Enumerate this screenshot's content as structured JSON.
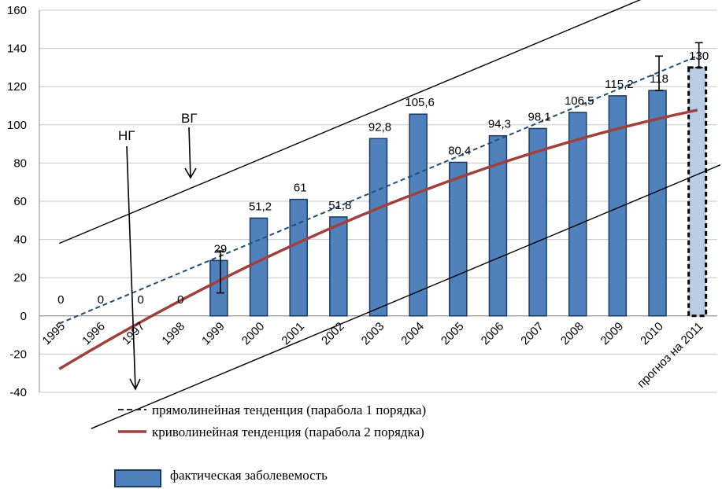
{
  "chart_data": {
    "type": "bar",
    "categories": [
      "1995",
      "1996",
      "1997",
      "1998",
      "1999",
      "2000",
      "2001",
      "2002",
      "2003",
      "2004",
      "2005",
      "2006",
      "2007",
      "2008",
      "2009",
      "2010",
      "прогноз на 2011"
    ],
    "series": [
      {
        "name": "фактическая заболевемость",
        "values": [
          0,
          0,
          0,
          0,
          29,
          51.2,
          61,
          51.8,
          92.8,
          105.6,
          80.4,
          94.3,
          98.1,
          106.5,
          115.2,
          118,
          130
        ],
        "data_labels": [
          "0",
          "0",
          "0",
          "0",
          "29",
          "51,2",
          "61",
          "51,8",
          "92,8",
          "105,6",
          "80,4",
          "94,3",
          "98,1",
          "106,5",
          "115,2",
          "118",
          "130"
        ],
        "color": "#4f81bd",
        "forecast_color": "#b9cde5"
      },
      {
        "name": "прямолинейная тенденция (парабола 1 порядка)",
        "type": "line",
        "start": -4,
        "end": 136,
        "color": "#1f4e79"
      },
      {
        "name": "криволинейная тенденция (парабола 2 порядка)",
        "type": "line",
        "coefficients": [
          -0.2556,
          12.56,
          -27.8
        ],
        "color": "#a0403d"
      }
    ],
    "ylim": [
      -40,
      160
    ],
    "yticks": [
      "-40",
      "-20",
      "0",
      "20",
      "40",
      "60",
      "80",
      "100",
      "120",
      "140",
      "160"
    ],
    "annotations": {
      "upper_bound": "ВГ",
      "lower_bound": "НГ"
    },
    "error_bars": [
      {
        "category": "1999",
        "low": 12,
        "high": 34
      },
      {
        "category": "2010",
        "low": 118,
        "high": 136
      },
      {
        "category": "прогноз на 2011",
        "low": 130,
        "high": 143
      }
    ],
    "grid": true
  }
}
